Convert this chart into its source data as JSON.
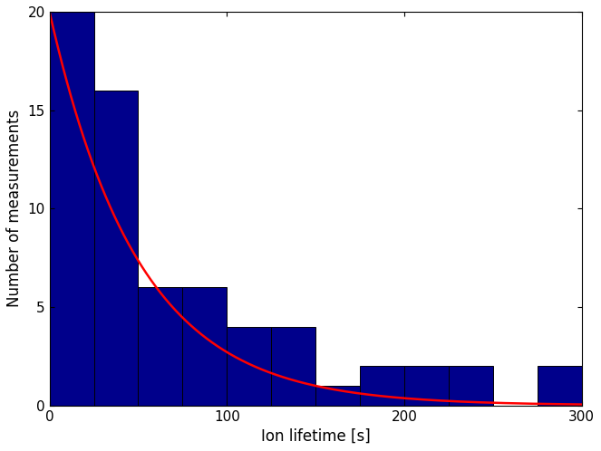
{
  "bin_edges": [
    0,
    25,
    50,
    75,
    100,
    125,
    150,
    175,
    200,
    225,
    250,
    275,
    300
  ],
  "bar_heights": [
    20,
    16,
    6,
    6,
    4,
    4,
    1,
    2,
    2,
    2,
    0,
    2
  ],
  "bar_color": "#00008B",
  "bar_edgecolor": "#000000",
  "exp_amplitude": 20.0,
  "exp_decay": 50.0,
  "curve_color": "#FF0000",
  "xlabel": "Ion lifetime [s]",
  "ylabel": "Number of measurements",
  "xlim": [
    0,
    300
  ],
  "ylim": [
    0,
    20
  ],
  "yticks": [
    0,
    5,
    10,
    15,
    20
  ],
  "xticks": [
    0,
    100,
    200,
    300
  ],
  "curve_linewidth": 1.8,
  "bar_linewidth": 0.7,
  "tick_labelsize": 11,
  "label_fontsize": 12
}
